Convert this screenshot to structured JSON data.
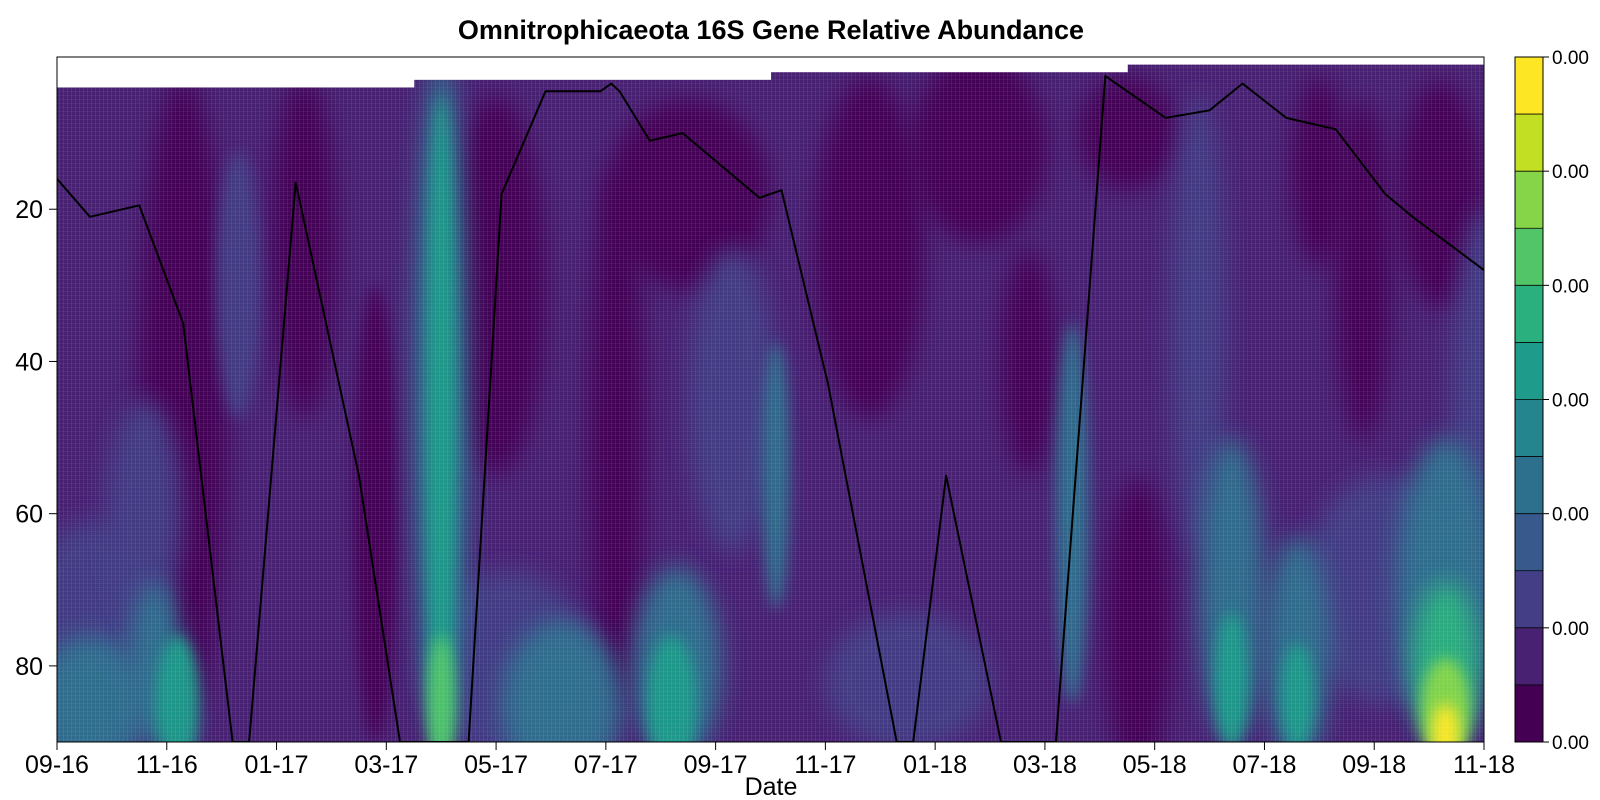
{
  "chart_data": {
    "type": "heatmap",
    "title": "Omnitrophicaeota 16S Gene Relative Abundance",
    "xlabel": "Date",
    "ylabel": "",
    "x_tick_labels": [
      "09-16",
      "11-16",
      "01-17",
      "03-17",
      "05-17",
      "07-17",
      "09-17",
      "11-17",
      "01-18",
      "03-18",
      "05-18",
      "07-18",
      "09-18",
      "11-18"
    ],
    "x_range_months": [
      0,
      26
    ],
    "y_ticks": [
      20,
      40,
      60,
      80
    ],
    "y_range": [
      0,
      90
    ],
    "y_reversed": true,
    "colorbar": {
      "labels": [
        "0.00",
        "0.00",
        "0.00",
        "0.00",
        "0.00",
        "0.00",
        "0.00"
      ],
      "levels": 12,
      "colors": [
        "#440154",
        "#482173",
        "#433e85",
        "#38598c",
        "#2d708e",
        "#25858e",
        "#1e9b8a",
        "#2ab07f",
        "#52c569",
        "#86d549",
        "#c2df23",
        "#fde725"
      ]
    },
    "top_data_boundary": [
      {
        "x_start": 0.0,
        "x_end": 6.5,
        "depth": 4
      },
      {
        "x_start": 6.5,
        "x_end": 13.0,
        "depth": 3
      },
      {
        "x_start": 13.0,
        "x_end": 19.5,
        "depth": 2
      },
      {
        "x_start": 19.5,
        "x_end": 26.0,
        "depth": 1
      }
    ],
    "series": [
      {
        "name": "boundary depth",
        "color": "#000000",
        "x": [
          0.0,
          0.6,
          1.5,
          2.3,
          3.2,
          3.5,
          4.35,
          5.5,
          6.25,
          7.5,
          8.1,
          8.9,
          9.9,
          10.1,
          10.25,
          10.8,
          11.4,
          12.8,
          13.2,
          14.05,
          15.3,
          15.6,
          16.2,
          17.2,
          17.5,
          18.2,
          19.1,
          20.2,
          21.0,
          21.6,
          22.4,
          23.3,
          24.2,
          24.7,
          26.0
        ],
        "y": [
          16,
          21,
          19.5,
          35,
          90,
          90,
          16.5,
          55,
          90,
          90,
          18,
          4.5,
          4.5,
          3.5,
          4.5,
          11,
          10,
          18.5,
          17.5,
          43,
          90,
          90,
          55,
          90,
          90,
          90,
          2.5,
          8,
          7,
          3.5,
          8,
          9.5,
          18,
          21,
          28
        ]
      }
    ],
    "contour_features": [
      {
        "name": "april-2017 band",
        "x_center": 7.0,
        "level": 7
      },
      {
        "name": "fall-2016 bottom",
        "x_center": 2.2,
        "level": 6
      },
      {
        "name": "summer-2017 bottom",
        "x_center": 11.3,
        "level": 7
      },
      {
        "name": "fall-2017 streak",
        "x_center": 13.1,
        "level": 5
      },
      {
        "name": "march-2018 streak",
        "x_center": 18.5,
        "level": 5
      },
      {
        "name": "summer-2018 bottom",
        "x_center": 21.4,
        "level": 7
      },
      {
        "name": "fall-2018 peak",
        "x_center": 25.3,
        "level": 11
      }
    ]
  }
}
